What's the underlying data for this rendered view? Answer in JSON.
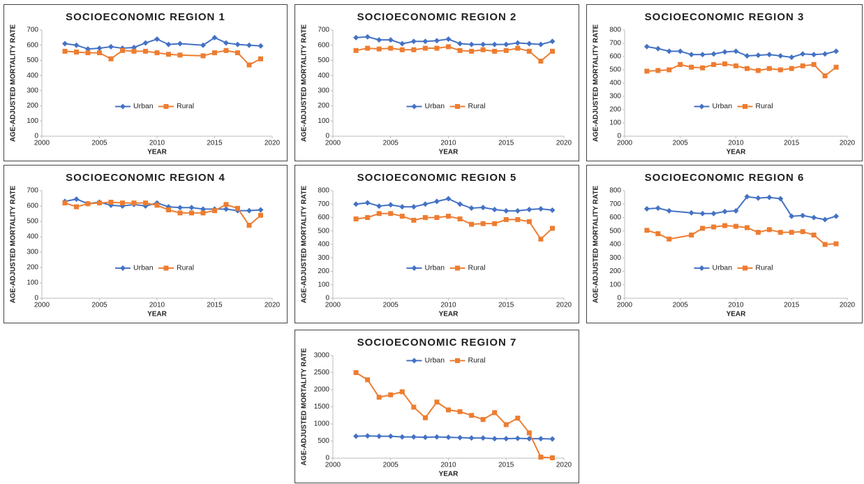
{
  "chart_data": [
    {
      "type": "line",
      "title": "SOCIOECONOMIC REGION 1",
      "x_label": "YEAR",
      "y_label": "AGE-ADJUSTED MORTALITY RATE",
      "x": [
        2002,
        2003,
        2004,
        2005,
        2006,
        2007,
        2008,
        2009,
        2010,
        2011,
        2012,
        2014,
        2015,
        2016,
        2017,
        2018,
        2019
      ],
      "series": [
        {
          "name": "Urban",
          "color": "#4472c4",
          "marker": "diamond",
          "values": [
            610,
            600,
            575,
            580,
            590,
            580,
            585,
            615,
            640,
            605,
            610,
            600,
            650,
            615,
            605,
            600,
            595
          ]
        },
        {
          "name": "Rural",
          "color": "#ed7d31",
          "marker": "square",
          "values": [
            560,
            555,
            550,
            550,
            510,
            565,
            560,
            560,
            550,
            540,
            535,
            530,
            550,
            565,
            550,
            470,
            510
          ]
        }
      ],
      "xlim": [
        2000,
        2020
      ],
      "xticks": [
        2000,
        2005,
        2010,
        2015,
        2020
      ],
      "ylim": [
        0,
        700
      ],
      "yticks": [
        0,
        100,
        200,
        300,
        400,
        500,
        600,
        700
      ],
      "grid": false
    },
    {
      "type": "line",
      "title": "SOCIOECONOMIC REGION 2",
      "x_label": "YEAR",
      "y_label": "AGE-ADJUSTED MORTALITY RATE",
      "x": [
        2002,
        2003,
        2004,
        2005,
        2006,
        2007,
        2008,
        2009,
        2010,
        2011,
        2012,
        2013,
        2014,
        2015,
        2016,
        2017,
        2018,
        2019
      ],
      "series": [
        {
          "name": "Urban",
          "color": "#4472c4",
          "marker": "diamond",
          "values": [
            650,
            655,
            635,
            635,
            610,
            625,
            625,
            630,
            640,
            610,
            605,
            605,
            605,
            605,
            615,
            610,
            605,
            625
          ]
        },
        {
          "name": "Rural",
          "color": "#ed7d31",
          "marker": "square",
          "values": [
            565,
            580,
            575,
            580,
            570,
            570,
            580,
            580,
            590,
            565,
            560,
            570,
            560,
            565,
            580,
            560,
            495,
            560
          ]
        }
      ],
      "xlim": [
        2000,
        2020
      ],
      "xticks": [
        2000,
        2005,
        2010,
        2015,
        2020
      ],
      "ylim": [
        0,
        700
      ],
      "yticks": [
        0,
        100,
        200,
        300,
        400,
        500,
        600,
        700
      ],
      "grid": false
    },
    {
      "type": "line",
      "title": "SOCIOECONOMIC REGION 3",
      "x_label": "YEAR",
      "y_label": "AGE-ADJUSTED MORTALITY RATE",
      "x": [
        2002,
        2003,
        2004,
        2005,
        2006,
        2007,
        2008,
        2009,
        2010,
        2011,
        2012,
        2013,
        2014,
        2015,
        2016,
        2017,
        2018,
        2019
      ],
      "series": [
        {
          "name": "Urban",
          "color": "#4472c4",
          "marker": "diamond",
          "values": [
            675,
            660,
            640,
            640,
            615,
            615,
            620,
            635,
            640,
            605,
            610,
            615,
            605,
            595,
            620,
            615,
            620,
            640
          ]
        },
        {
          "name": "Rural",
          "color": "#ed7d31",
          "marker": "square",
          "values": [
            490,
            495,
            500,
            540,
            520,
            515,
            540,
            545,
            530,
            510,
            495,
            510,
            500,
            510,
            530,
            540,
            455,
            520
          ]
        }
      ],
      "xlim": [
        2000,
        2020
      ],
      "xticks": [
        2000,
        2005,
        2010,
        2015,
        2020
      ],
      "ylim": [
        0,
        800
      ],
      "yticks": [
        0,
        100,
        200,
        300,
        400,
        500,
        600,
        700,
        800
      ],
      "grid": false
    },
    {
      "type": "line",
      "title": "SOCIOECONOMIC REGION 4",
      "x_label": "YEAR",
      "y_label": "AGE-ADJUSTED MORTALITY RATE",
      "x": [
        2002,
        2003,
        2004,
        2005,
        2006,
        2007,
        2008,
        2009,
        2010,
        2011,
        2012,
        2013,
        2014,
        2015,
        2016,
        2017,
        2018,
        2019
      ],
      "series": [
        {
          "name": "Urban",
          "color": "#4472c4",
          "marker": "diamond",
          "values": [
            630,
            645,
            615,
            625,
            605,
            600,
            610,
            600,
            620,
            595,
            590,
            590,
            580,
            580,
            580,
            570,
            570,
            575
          ]
        },
        {
          "name": "Rural",
          "color": "#ed7d31",
          "marker": "square",
          "values": [
            620,
            595,
            615,
            620,
            625,
            620,
            620,
            620,
            605,
            575,
            555,
            555,
            555,
            570,
            610,
            585,
            475,
            540
          ]
        }
      ],
      "xlim": [
        2000,
        2020
      ],
      "xticks": [
        2000,
        2005,
        2010,
        2015,
        2020
      ],
      "ylim": [
        0,
        700
      ],
      "yticks": [
        0,
        100,
        200,
        300,
        400,
        500,
        600,
        700
      ],
      "grid": false
    },
    {
      "type": "line",
      "title": "SOCIOECONOMIC REGION 5",
      "x_label": "YEAR",
      "y_label": "AGE-ADJUSTED MORTALITY RATE",
      "x": [
        2002,
        2003,
        2004,
        2005,
        2006,
        2007,
        2008,
        2009,
        2010,
        2011,
        2012,
        2013,
        2014,
        2015,
        2016,
        2017,
        2018,
        2019
      ],
      "series": [
        {
          "name": "Urban",
          "color": "#4472c4",
          "marker": "diamond",
          "values": [
            700,
            710,
            685,
            695,
            680,
            680,
            700,
            720,
            740,
            700,
            670,
            675,
            660,
            650,
            650,
            660,
            665,
            655
          ]
        },
        {
          "name": "Rural",
          "color": "#ed7d31",
          "marker": "square",
          "values": [
            590,
            600,
            630,
            630,
            610,
            580,
            600,
            600,
            610,
            590,
            550,
            555,
            555,
            585,
            585,
            570,
            440,
            520
          ]
        }
      ],
      "xlim": [
        2000,
        2020
      ],
      "xticks": [
        2000,
        2005,
        2010,
        2015,
        2020
      ],
      "ylim": [
        0,
        800
      ],
      "yticks": [
        0,
        100,
        200,
        300,
        400,
        500,
        600,
        700,
        800
      ],
      "grid": false
    },
    {
      "type": "line",
      "title": "SOCIOECONOMIC REGION 6",
      "x_label": "YEAR",
      "y_label": "AGE-ADJUSTED MORTALITY RATE",
      "x": [
        2002,
        2003,
        2004,
        2006,
        2007,
        2008,
        2009,
        2010,
        2011,
        2012,
        2013,
        2014,
        2015,
        2016,
        2017,
        2018,
        2019
      ],
      "series": [
        {
          "name": "Urban",
          "color": "#4472c4",
          "marker": "diamond",
          "values": [
            665,
            670,
            650,
            635,
            630,
            630,
            645,
            650,
            755,
            745,
            750,
            740,
            610,
            615,
            600,
            585,
            610
          ]
        },
        {
          "name": "Rural",
          "color": "#ed7d31",
          "marker": "square",
          "values": [
            505,
            480,
            440,
            470,
            520,
            530,
            540,
            535,
            525,
            490,
            510,
            490,
            490,
            495,
            470,
            400,
            405
          ]
        }
      ],
      "xlim": [
        2000,
        2020
      ],
      "xticks": [
        2000,
        2005,
        2010,
        2015,
        2020
      ],
      "ylim": [
        0,
        800
      ],
      "yticks": [
        0,
        100,
        200,
        300,
        400,
        500,
        600,
        700,
        800
      ],
      "grid": false
    },
    {
      "type": "line",
      "title": "SOCIOECONOMIC REGION 7",
      "x_label": "YEAR",
      "y_label": "AGE-ADJUSTED MORTALITY RATE",
      "x": [
        2002,
        2003,
        2004,
        2005,
        2006,
        2007,
        2008,
        2009,
        2010,
        2011,
        2012,
        2013,
        2014,
        2015,
        2016,
        2017,
        2018,
        2019
      ],
      "series": [
        {
          "name": "Urban",
          "color": "#4472c4",
          "marker": "diamond",
          "values": [
            640,
            650,
            640,
            640,
            620,
            620,
            610,
            620,
            610,
            600,
            590,
            590,
            570,
            570,
            580,
            570,
            570,
            560
          ]
        },
        {
          "name": "Rural",
          "color": "#ed7d31",
          "marker": "square",
          "values": [
            2500,
            2290,
            1780,
            1850,
            1940,
            1490,
            1180,
            1640,
            1410,
            1360,
            1250,
            1130,
            1330,
            980,
            1170,
            740,
            30,
            10
          ]
        }
      ],
      "xlim": [
        2000,
        2020
      ],
      "xticks": [
        2000,
        2005,
        2010,
        2015,
        2020
      ],
      "ylim": [
        0,
        3000
      ],
      "yticks": [
        0,
        500,
        1000,
        1500,
        2000,
        2500,
        3000
      ],
      "grid": false,
      "legend": "top"
    }
  ]
}
